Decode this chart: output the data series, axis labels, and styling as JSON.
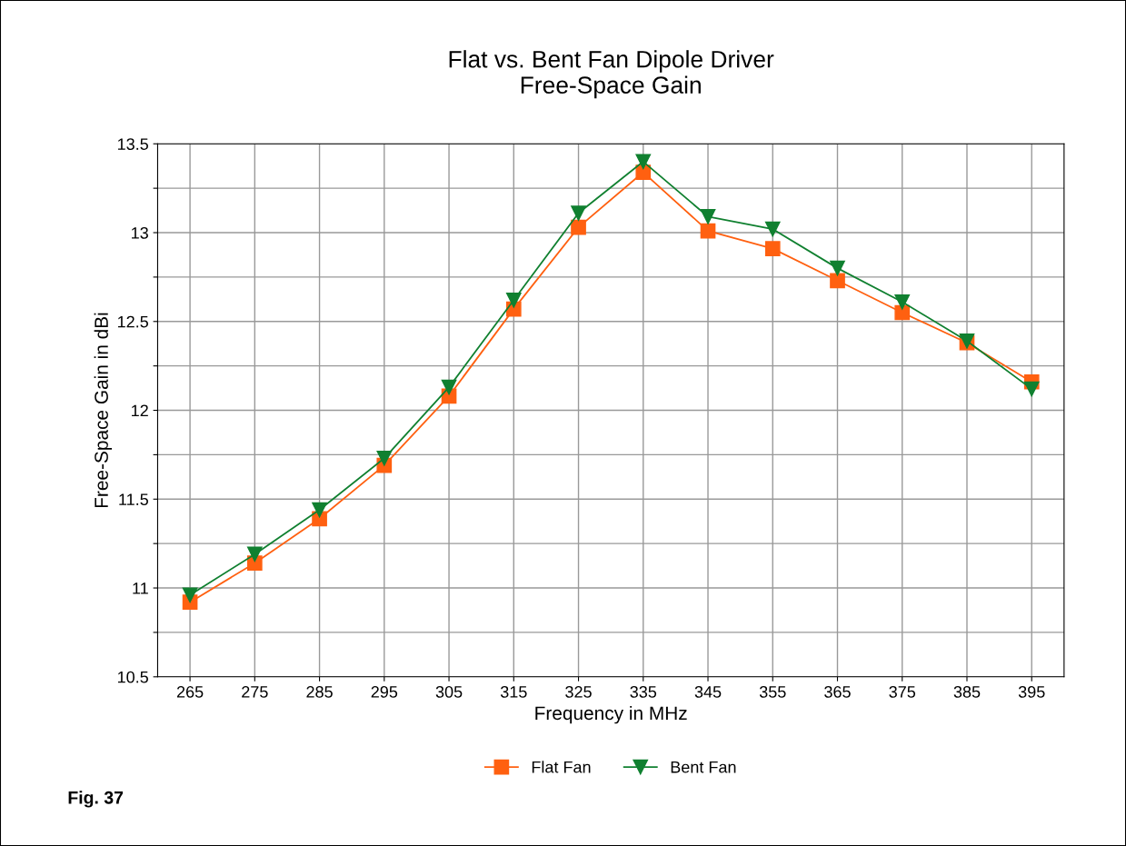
{
  "chart_data": {
    "type": "line",
    "title": "Flat vs. Bent Fan Dipole Driver\nFree-Space Gain",
    "xlabel": "Frequency in MHz",
    "ylabel": "Free-Space Gain in dBi",
    "categories": [
      "265",
      "275",
      "285",
      "295",
      "305",
      "315",
      "325",
      "335",
      "345",
      "355",
      "365",
      "375",
      "385",
      "395"
    ],
    "series": [
      {
        "name": "Flat Fan",
        "color": "#ff6010",
        "marker": "square",
        "values": [
          10.92,
          11.14,
          11.39,
          11.69,
          12.08,
          12.57,
          13.03,
          13.34,
          13.01,
          12.91,
          12.73,
          12.55,
          12.38,
          12.16
        ]
      },
      {
        "name": "Bent Fan",
        "color": "#108030",
        "marker": "triangle",
        "values": [
          10.96,
          11.19,
          11.44,
          11.73,
          12.13,
          12.62,
          13.11,
          13.4,
          13.09,
          13.02,
          12.8,
          12.61,
          12.39,
          12.12
        ]
      }
    ],
    "ylim": [
      10.5,
      13.5
    ],
    "yticks": [
      10.5,
      {
        "value": 10.75,
        "label": null
      },
      11,
      {
        "value": 11.25,
        "label": null
      },
      11.5,
      {
        "value": 11.75,
        "label": null
      },
      12,
      {
        "value": 12.25,
        "label": null
      },
      12.5,
      {
        "value": 12.75,
        "label": null
      },
      13,
      {
        "value": 13.25,
        "label": null
      },
      13.5
    ],
    "grid": true,
    "legend": "bottom",
    "line_style": "solid",
    "annotations": [
      "Fig. 37"
    ]
  }
}
